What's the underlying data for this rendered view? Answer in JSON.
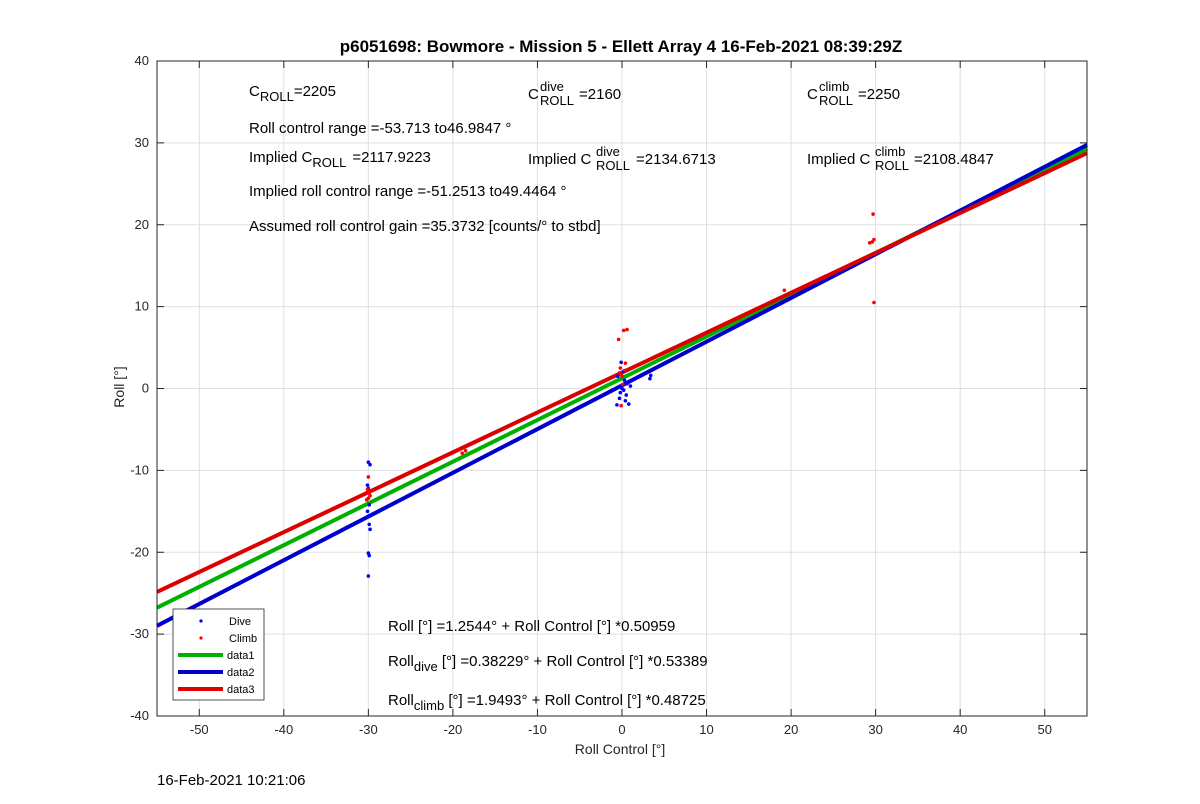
{
  "chart_data": {
    "type": "scatter",
    "title": "p6051698: Bowmore - Mission 5 - Ellett Array 4 16-Feb-2021 08:39:29Z",
    "xlabel": "Roll Control [°]",
    "ylabel": "Roll [°]",
    "xlim": [
      -55,
      55
    ],
    "ylim": [
      -40,
      40
    ],
    "xticks": [
      -50,
      -40,
      -30,
      -20,
      -10,
      0,
      10,
      20,
      30,
      40,
      50
    ],
    "yticks": [
      -40,
      -30,
      -20,
      -10,
      0,
      10,
      20,
      30,
      40
    ],
    "grid": true,
    "legend_position": "bottom-left",
    "legend": [
      "Dive",
      "Climb",
      "data1",
      "data2",
      "data3"
    ],
    "colors": {
      "dive": "#0000ff",
      "climb": "#ff0000",
      "data1": "#00b000",
      "data2": "#0000cc",
      "data3": "#dd0000"
    },
    "series": [
      {
        "name": "Dive",
        "kind": "points",
        "points": [
          [
            -30,
            -9
          ],
          [
            -29.8,
            -9.3
          ],
          [
            -30.1,
            -11.8
          ],
          [
            -30,
            -12.2
          ],
          [
            -29.9,
            -14.2
          ],
          [
            -30.1,
            -15
          ],
          [
            -30,
            -15.6
          ],
          [
            -29.9,
            -16.6
          ],
          [
            -29.8,
            -17.2
          ],
          [
            -30,
            -20.1
          ],
          [
            -29.9,
            -20.4
          ],
          [
            -30,
            -22.9
          ],
          [
            0,
            0
          ],
          [
            0.1,
            0.4
          ],
          [
            -0.2,
            -0.5
          ],
          [
            0.3,
            1
          ],
          [
            -0.3,
            -1.2
          ],
          [
            0.5,
            -0.8
          ],
          [
            0.2,
            2.1
          ],
          [
            -0.1,
            3.2
          ],
          [
            0.4,
            -1.5
          ],
          [
            0.6,
            0.6
          ],
          [
            -0.5,
            1.5
          ],
          [
            0.2,
            -0.2
          ],
          [
            3.3,
            1.2
          ],
          [
            3.4,
            1.6
          ],
          [
            1,
            0.3
          ],
          [
            0.8,
            -1.9
          ],
          [
            -0.6,
            -2
          ]
        ]
      },
      {
        "name": "Climb",
        "kind": "points",
        "points": [
          [
            -30,
            -10.8
          ],
          [
            -30.1,
            -12.3
          ],
          [
            -29.9,
            -12.8
          ],
          [
            -30,
            -13.4
          ],
          [
            -30.2,
            -13.6
          ],
          [
            -29.8,
            -13.1
          ],
          [
            -18.5,
            -7.6
          ],
          [
            -18.9,
            -7.9
          ],
          [
            0,
            1.5
          ],
          [
            -0.2,
            2.5
          ],
          [
            0.3,
            2.2
          ],
          [
            -0.4,
            6
          ],
          [
            0.2,
            7.1
          ],
          [
            0.6,
            7.2
          ],
          [
            -0.1,
            -2.1
          ],
          [
            0.1,
            0.5
          ],
          [
            -0.3,
            1.9
          ],
          [
            0.4,
            3.1
          ],
          [
            19.2,
            12
          ],
          [
            29.3,
            17.8
          ],
          [
            29.6,
            17.9
          ],
          [
            29.8,
            18.2
          ],
          [
            29.7,
            21.3
          ],
          [
            29.8,
            10.5
          ]
        ]
      },
      {
        "name": "data1",
        "kind": "line",
        "intercept": 1.2544,
        "slope": 0.50959
      },
      {
        "name": "data2",
        "kind": "line",
        "intercept": 0.38229,
        "slope": 0.53389
      },
      {
        "name": "data3",
        "kind": "line",
        "intercept": 1.9493,
        "slope": 0.48725
      }
    ],
    "annotations": {
      "c_roll": {
        "base": "C",
        "sub": "ROLL",
        "value": "=2205"
      },
      "c_roll_dive": {
        "base": "C",
        "sup": "dive",
        "sub": "ROLL",
        "value": "=2160"
      },
      "c_roll_climb": {
        "base": "C",
        "sup": "climb",
        "sub": "ROLL",
        "value": "=2250"
      },
      "roll_control_range": "Roll control range =-53.713 to46.9847 °",
      "implied_c_roll": {
        "prefix": "Implied C",
        "sub": "ROLL",
        "value": "=2117.9223"
      },
      "implied_c_roll_dive": {
        "prefix": "Implied C",
        "sup": "dive",
        "sub": "ROLL",
        "value": "=2134.6713"
      },
      "implied_c_roll_climb": {
        "prefix": "Implied C",
        "sup": "climb",
        "sub": "ROLL",
        "value": "=2108.4847"
      },
      "implied_range": "Implied roll control range =-51.2513 to49.4464 °",
      "gain": "Assumed roll control gain =35.3732 [counts/° to stbd]",
      "fit_all": "Roll [°] =1.2544° + Roll Control [°] *0.50959",
      "fit_dive": {
        "base": "Roll",
        "sub": "dive",
        "rest": " [°] =0.38229° + Roll Control [°] *0.53389"
      },
      "fit_climb": {
        "base": "Roll",
        "sub": "climb",
        "rest": " [°] =1.9493° + Roll Control [°] *0.48725"
      }
    }
  },
  "footer": {
    "timestamp": "16-Feb-2021 10:21:06"
  }
}
